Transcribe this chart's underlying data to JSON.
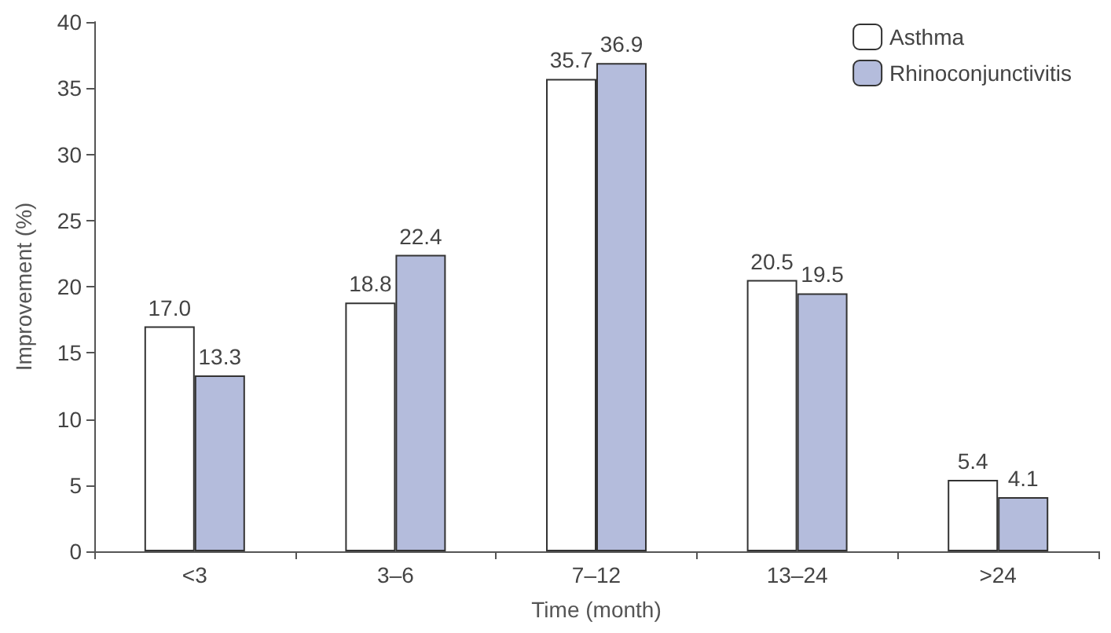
{
  "chart_data": {
    "type": "bar",
    "categories": [
      "<3",
      "3–6",
      "7–12",
      "13–24",
      ">24"
    ],
    "series": [
      {
        "name": "Asthma",
        "color": "#ffffff",
        "values": [
          17.0,
          18.8,
          35.7,
          20.5,
          5.4
        ],
        "value_labels": [
          "17.0",
          "18.8",
          "35.7",
          "20.5",
          "5.4"
        ]
      },
      {
        "name": "Rhinoconjunctivitis",
        "color": "#b4bcdc",
        "values": [
          13.3,
          22.4,
          36.9,
          19.5,
          4.1
        ],
        "value_labels": [
          "13.3",
          "22.4",
          "36.9",
          "19.5",
          "4.1"
        ]
      }
    ],
    "xlabel": "Time (month)",
    "ylabel": "Improvement (%)",
    "ylim": [
      0,
      40
    ],
    "yticks": [
      0,
      5,
      10,
      15,
      20,
      25,
      30,
      35,
      40
    ],
    "grid": false,
    "legend": "top right"
  }
}
